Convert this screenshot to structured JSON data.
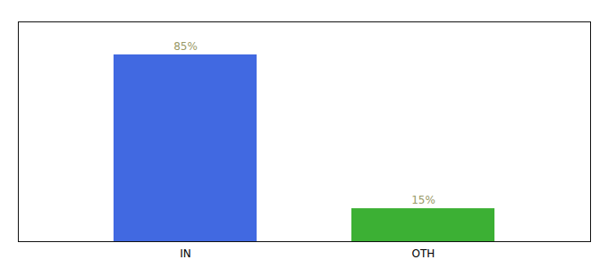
{
  "chart_data": {
    "type": "bar",
    "categories": [
      "IN",
      "OTH"
    ],
    "values": [
      85,
      15
    ],
    "value_labels": [
      "85%",
      "15%"
    ],
    "data_labels": true,
    "colors": [
      "#4169e1",
      "#3cb034"
    ],
    "ylim": [
      0,
      100
    ],
    "tick_labels": "x",
    "grid": false
  }
}
